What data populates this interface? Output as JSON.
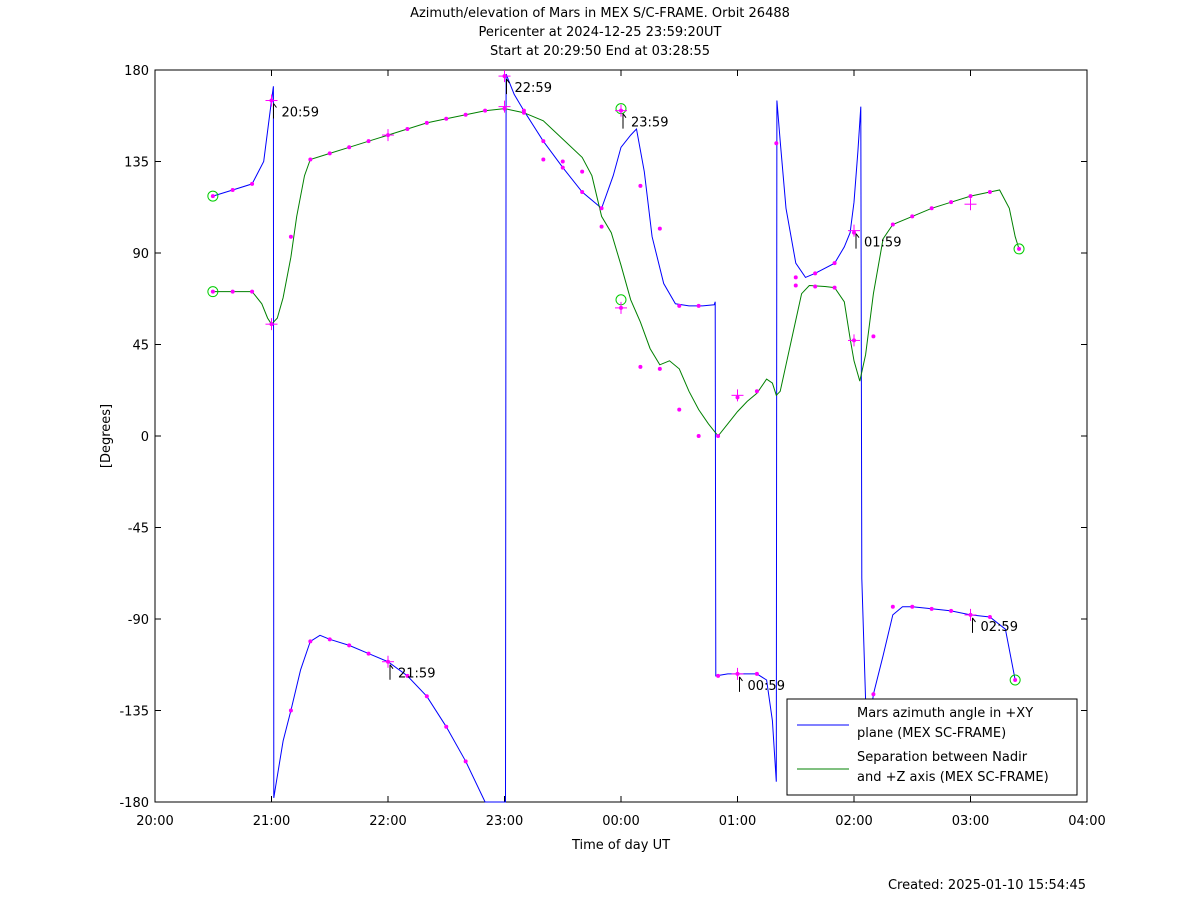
{
  "chart_data": {
    "type": "line",
    "title": [
      "Azimuth/elevation of Mars in MEX S/C-FRAME.  Orbit 26488",
      "Pericenter at 2024-12-25 23:59:20UT",
      "Start at 20:29:50 End at 03:28:55"
    ],
    "xlabel": "Time of day UT",
    "ylabel": "[Degrees]",
    "xlim": [
      0,
      480
    ],
    "ylim": [
      -180,
      180
    ],
    "x_unit": "minutes after 20:00 UT",
    "x_ticks": [
      {
        "v": 0,
        "label": "20:00"
      },
      {
        "v": 60,
        "label": "21:00"
      },
      {
        "v": 120,
        "label": "22:00"
      },
      {
        "v": 180,
        "label": "23:00"
      },
      {
        "v": 240,
        "label": "00:00"
      },
      {
        "v": 300,
        "label": "01:00"
      },
      {
        "v": 360,
        "label": "02:00"
      },
      {
        "v": 420,
        "label": "03:00"
      },
      {
        "v": 480,
        "label": "04:00"
      }
    ],
    "y_ticks": [
      {
        "v": 180,
        "label": "180"
      },
      {
        "v": 135,
        "label": "135"
      },
      {
        "v": 90,
        "label": "90"
      },
      {
        "v": 45,
        "label": "45"
      },
      {
        "v": 0,
        "label": "0"
      },
      {
        "v": -45,
        "label": "-45"
      },
      {
        "v": -90,
        "label": "-90"
      },
      {
        "v": -135,
        "label": "-135"
      },
      {
        "v": -180,
        "label": "-180"
      }
    ],
    "grid": false,
    "legend_position": "bottom-right",
    "series": [
      {
        "name": "Mars azimuth angle in +XY plane (MEX SC-FRAME)",
        "color": "#0000ff",
        "points": [
          [
            29.8,
            118
          ],
          [
            40,
            121
          ],
          [
            50,
            124
          ],
          [
            56,
            135
          ],
          [
            60,
            165
          ],
          [
            61,
            172
          ],
          [
            61.2,
            -178
          ],
          [
            62,
            -173
          ],
          [
            66,
            -150
          ],
          [
            70,
            -135
          ],
          [
            75,
            -115
          ],
          [
            80,
            -101
          ],
          [
            85,
            -98
          ],
          [
            90,
            -100
          ],
          [
            100,
            -103
          ],
          [
            110,
            -107
          ],
          [
            120,
            -111
          ],
          [
            130,
            -118
          ],
          [
            140,
            -128
          ],
          [
            150,
            -143
          ],
          [
            160,
            -160
          ],
          [
            170,
            -180
          ],
          [
            180.5,
            -180
          ],
          [
            180.8,
            178
          ],
          [
            185,
            168
          ],
          [
            190,
            160
          ],
          [
            200,
            145
          ],
          [
            210,
            132
          ],
          [
            220,
            120
          ],
          [
            230,
            112
          ],
          [
            236,
            128
          ],
          [
            240,
            142
          ],
          [
            245,
            148
          ],
          [
            248,
            151
          ],
          [
            252,
            130
          ],
          [
            256,
            98
          ],
          [
            262,
            75
          ],
          [
            268,
            65
          ],
          [
            275,
            64
          ],
          [
            282,
            64
          ],
          [
            288,
            64.5
          ],
          [
            288.5,
            66
          ],
          [
            288.8,
            -118
          ],
          [
            295,
            -117
          ],
          [
            300,
            -117
          ],
          [
            305,
            -117
          ],
          [
            310,
            -117
          ],
          [
            315,
            -120
          ],
          [
            318,
            -140
          ],
          [
            320,
            -170
          ],
          [
            320.3,
            165
          ],
          [
            322,
            145
          ],
          [
            325,
            112
          ],
          [
            330,
            85
          ],
          [
            335,
            78
          ],
          [
            340,
            80
          ],
          [
            350,
            85
          ],
          [
            355,
            93
          ],
          [
            358,
            100
          ],
          [
            360,
            115
          ],
          [
            362,
            140
          ],
          [
            363.5,
            162
          ],
          [
            364,
            -70
          ],
          [
            366,
            -130
          ],
          [
            367,
            -150
          ],
          [
            370,
            -127
          ],
          [
            375,
            -108
          ],
          [
            380,
            -88
          ],
          [
            385,
            -84
          ],
          [
            390,
            -84
          ],
          [
            400,
            -85
          ],
          [
            410,
            -86
          ],
          [
            420,
            -88
          ],
          [
            430,
            -89
          ],
          [
            438,
            -95
          ],
          [
            443,
            -120
          ]
        ]
      },
      {
        "name": "Separation between Nadir and +Z axis (MEX SC-FRAME)",
        "color": "#008000",
        "points": [
          [
            29.8,
            71
          ],
          [
            40,
            71
          ],
          [
            50,
            71
          ],
          [
            55,
            65
          ],
          [
            58,
            58
          ],
          [
            60,
            55
          ],
          [
            63,
            58
          ],
          [
            66,
            68
          ],
          [
            70,
            88
          ],
          [
            73,
            108
          ],
          [
            77,
            128
          ],
          [
            80,
            136
          ],
          [
            90,
            139
          ],
          [
            100,
            142
          ],
          [
            110,
            145
          ],
          [
            120,
            148
          ],
          [
            130,
            151
          ],
          [
            140,
            154
          ],
          [
            150,
            156
          ],
          [
            160,
            158
          ],
          [
            170,
            160
          ],
          [
            180,
            161
          ],
          [
            190,
            159
          ],
          [
            200,
            155
          ],
          [
            210,
            146
          ],
          [
            220,
            137
          ],
          [
            225,
            128
          ],
          [
            230,
            108
          ],
          [
            235,
            100
          ],
          [
            240,
            84
          ],
          [
            245,
            67
          ],
          [
            250,
            56
          ],
          [
            255,
            43
          ],
          [
            260,
            35
          ],
          [
            265,
            37
          ],
          [
            270,
            33
          ],
          [
            275,
            22
          ],
          [
            280,
            13
          ],
          [
            285,
            6
          ],
          [
            290,
            0
          ],
          [
            295,
            6
          ],
          [
            300,
            12
          ],
          [
            305,
            17
          ],
          [
            310,
            21
          ],
          [
            315,
            28
          ],
          [
            318,
            26
          ],
          [
            320,
            20
          ],
          [
            322,
            22
          ],
          [
            325,
            35
          ],
          [
            330,
            57
          ],
          [
            333,
            70
          ],
          [
            337,
            74
          ],
          [
            345,
            73.5
          ],
          [
            350,
            73
          ],
          [
            355,
            66
          ],
          [
            358,
            48
          ],
          [
            360,
            37
          ],
          [
            363,
            27
          ],
          [
            366,
            40
          ],
          [
            370,
            70
          ],
          [
            375,
            97
          ],
          [
            380,
            104
          ],
          [
            390,
            108
          ],
          [
            400,
            112
          ],
          [
            410,
            115
          ],
          [
            420,
            118
          ],
          [
            430,
            120
          ],
          [
            435,
            121
          ],
          [
            440,
            112
          ],
          [
            443,
            98
          ],
          [
            445,
            92
          ]
        ]
      }
    ],
    "marker_points": [
      [
        29.8,
        118
      ],
      [
        40,
        121
      ],
      [
        50,
        124
      ],
      [
        60,
        165
      ],
      [
        70,
        -135
      ],
      [
        80,
        -101
      ],
      [
        90,
        -100
      ],
      [
        100,
        -103
      ],
      [
        110,
        -107
      ],
      [
        120,
        -111
      ],
      [
        130,
        -118
      ],
      [
        140,
        -128
      ],
      [
        150,
        -143
      ],
      [
        160,
        -160
      ],
      [
        180,
        177
      ],
      [
        190,
        160
      ],
      [
        200,
        145
      ],
      [
        210,
        132
      ],
      [
        220,
        120
      ],
      [
        230,
        112
      ],
      [
        240,
        160
      ],
      [
        250,
        123
      ],
      [
        260,
        102
      ],
      [
        270,
        64
      ],
      [
        280,
        64
      ],
      [
        290,
        -118
      ],
      [
        300,
        -117
      ],
      [
        310,
        -117
      ],
      [
        330,
        78
      ],
      [
        340,
        80
      ],
      [
        350,
        85
      ],
      [
        360,
        100
      ],
      [
        370,
        -127
      ],
      [
        380,
        -84
      ],
      [
        390,
        -84
      ],
      [
        400,
        -85
      ],
      [
        410,
        -86
      ],
      [
        420,
        -88
      ],
      [
        430,
        -89
      ],
      [
        443,
        -120
      ],
      [
        29.8,
        71
      ],
      [
        40,
        71
      ],
      [
        50,
        71
      ],
      [
        60,
        55
      ],
      [
        70,
        98
      ],
      [
        80,
        136
      ],
      [
        90,
        139
      ],
      [
        100,
        142
      ],
      [
        110,
        145
      ],
      [
        120,
        148
      ],
      [
        130,
        151
      ],
      [
        140,
        154
      ],
      [
        150,
        156
      ],
      [
        160,
        158
      ],
      [
        170,
        160
      ],
      [
        180,
        161
      ],
      [
        190,
        159
      ],
      [
        200,
        136
      ],
      [
        210,
        135
      ],
      [
        220,
        130
      ],
      [
        230,
        103
      ],
      [
        240,
        63
      ],
      [
        250,
        34
      ],
      [
        260,
        33
      ],
      [
        270,
        13
      ],
      [
        280,
        0
      ],
      [
        290,
        0
      ],
      [
        300,
        19
      ],
      [
        310,
        22
      ],
      [
        320,
        144
      ],
      [
        330,
        74
      ],
      [
        340,
        73.5
      ],
      [
        350,
        73
      ],
      [
        360,
        47
      ],
      [
        370,
        49
      ],
      [
        380,
        104
      ],
      [
        390,
        108
      ],
      [
        400,
        112
      ],
      [
        410,
        115
      ],
      [
        420,
        118
      ],
      [
        430,
        120
      ],
      [
        445,
        92
      ]
    ],
    "plus_markers": [
      [
        60,
        165
      ],
      [
        60,
        55
      ],
      [
        120,
        -111
      ],
      [
        120,
        148
      ],
      [
        180,
        177
      ],
      [
        180,
        162
      ],
      [
        240,
        160
      ],
      [
        240,
        63
      ],
      [
        300,
        -117
      ],
      [
        300,
        20
      ],
      [
        360,
        101
      ],
      [
        360,
        47
      ],
      [
        420,
        -88
      ],
      [
        420,
        114
      ]
    ],
    "circle_markers": [
      [
        29.8,
        118
      ],
      [
        29.8,
        71
      ],
      [
        240,
        161
      ],
      [
        240,
        67
      ],
      [
        443,
        -120
      ],
      [
        445,
        92
      ]
    ],
    "time_annotations": [
      {
        "x": 60,
        "y": 165,
        "label": "20:59"
      },
      {
        "x": 120,
        "y": -111,
        "label": "21:59"
      },
      {
        "x": 180,
        "y": 177,
        "label": "22:59"
      },
      {
        "x": 240,
        "y": 160,
        "label": "23:59"
      },
      {
        "x": 300,
        "y": -117,
        "label": "00:59"
      },
      {
        "x": 360,
        "y": 101,
        "label": "01:59"
      },
      {
        "x": 420,
        "y": -88,
        "label": "02:59"
      }
    ],
    "legend": [
      {
        "lines": [
          "Mars azimuth angle in +XY",
          "plane (MEX SC-FRAME)"
        ],
        "color": "#0000ff"
      },
      {
        "lines": [
          "Separation between Nadir",
          "and +Z axis (MEX SC-FRAME)"
        ],
        "color": "#008000"
      }
    ]
  },
  "footer": {
    "created": "Created: 2025-01-10 15:54:45"
  }
}
